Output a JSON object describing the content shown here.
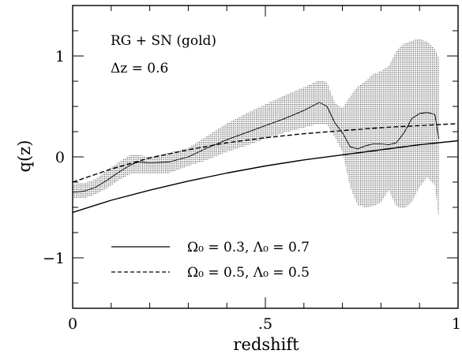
{
  "chart_data": {
    "type": "line",
    "xlabel": "redshift",
    "ylabel": "q(z)",
    "xlim": [
      0,
      1
    ],
    "ylim": [
      -1.5,
      1.5
    ],
    "x_ticks": [
      {
        "value": 0,
        "label": "0"
      },
      {
        "value": 0.5,
        "label": ".5"
      },
      {
        "value": 1,
        "label": "1"
      }
    ],
    "y_ticks": [
      {
        "value": -1,
        "label": "−1"
      },
      {
        "value": 0,
        "label": "0"
      },
      {
        "value": 1,
        "label": "1"
      }
    ],
    "annotations": [
      "RG + SN (gold)",
      "Δz  =  0.6"
    ],
    "legend_position": "bottom-left",
    "grid": false,
    "series": [
      {
        "name": "Ω₀ = 0.3, Λ₀ = 0.7",
        "style": "solid",
        "x": [
          0,
          0.1,
          0.2,
          0.3,
          0.4,
          0.5,
          0.6,
          0.7,
          0.8,
          0.9,
          1.0
        ],
        "y": [
          -0.55,
          -0.43,
          -0.33,
          -0.24,
          -0.16,
          -0.09,
          -0.03,
          0.02,
          0.07,
          0.12,
          0.16
        ]
      },
      {
        "name": "Ω₀ = 0.5, Λ₀ = 0.5",
        "style": "dashed",
        "x": [
          0,
          0.1,
          0.2,
          0.3,
          0.4,
          0.5,
          0.6,
          0.7,
          0.8,
          0.9,
          1.0
        ],
        "y": [
          -0.25,
          -0.12,
          -0.01,
          0.07,
          0.14,
          0.19,
          0.23,
          0.26,
          0.29,
          0.31,
          0.33
        ]
      },
      {
        "name": "",
        "style": "thin",
        "x": [
          0,
          0.03,
          0.06,
          0.09,
          0.12,
          0.15,
          0.17,
          0.2,
          0.25,
          0.3,
          0.35,
          0.4,
          0.45,
          0.5,
          0.55,
          0.6,
          0.64,
          0.66,
          0.68,
          0.7,
          0.72,
          0.74,
          0.76,
          0.78,
          0.8,
          0.82,
          0.84,
          0.86,
          0.88,
          0.9,
          0.92,
          0.94,
          0.95
        ],
        "y": [
          -0.35,
          -0.34,
          -0.3,
          -0.23,
          -0.15,
          -0.08,
          -0.05,
          -0.06,
          -0.05,
          0.0,
          0.09,
          0.17,
          0.24,
          0.31,
          0.38,
          0.46,
          0.54,
          0.5,
          0.34,
          0.24,
          0.1,
          0.08,
          0.11,
          0.13,
          0.13,
          0.12,
          0.14,
          0.24,
          0.38,
          0.43,
          0.44,
          0.42,
          0.18
        ]
      }
    ],
    "band": {
      "x": [
        0,
        0.03,
        0.06,
        0.09,
        0.12,
        0.15,
        0.17,
        0.2,
        0.25,
        0.3,
        0.35,
        0.4,
        0.45,
        0.5,
        0.55,
        0.6,
        0.64,
        0.66,
        0.68,
        0.7,
        0.72,
        0.74,
        0.76,
        0.78,
        0.8,
        0.82,
        0.84,
        0.86,
        0.88,
        0.9,
        0.92,
        0.94,
        0.95
      ],
      "upper": [
        -0.27,
        -0.26,
        -0.22,
        -0.13,
        -0.05,
        0.02,
        0.02,
        0.0,
        0.04,
        0.09,
        0.21,
        0.33,
        0.43,
        0.52,
        0.61,
        0.69,
        0.76,
        0.74,
        0.54,
        0.48,
        0.6,
        0.7,
        0.75,
        0.82,
        0.85,
        0.9,
        1.05,
        1.12,
        1.15,
        1.17,
        1.14,
        1.07,
        0.98
      ],
      "lower": [
        -0.41,
        -0.41,
        -0.37,
        -0.31,
        -0.23,
        -0.17,
        -0.16,
        -0.17,
        -0.16,
        -0.09,
        -0.03,
        0.05,
        0.11,
        0.18,
        0.24,
        0.29,
        0.33,
        0.32,
        0.2,
        0.05,
        -0.3,
        -0.48,
        -0.5,
        -0.49,
        -0.45,
        -0.33,
        -0.49,
        -0.51,
        -0.45,
        -0.3,
        -0.2,
        -0.28,
        -0.6
      ]
    }
  }
}
